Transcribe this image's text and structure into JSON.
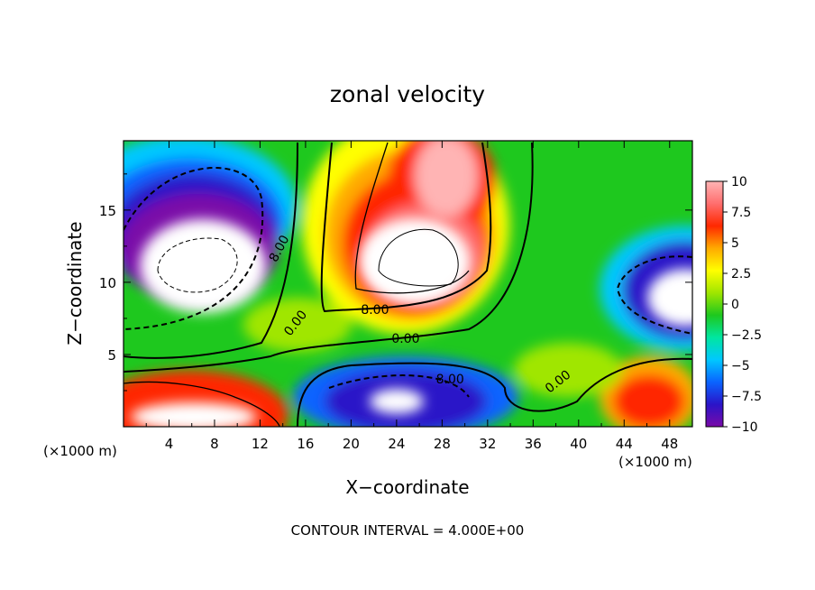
{
  "chart_data": {
    "type": "heatmap",
    "title": "zonal velocity",
    "xlabel": "X−coordinate",
    "ylabel": "Z−coordinate",
    "x_unit": "(×1000 m)",
    "y_unit": "(×1000 m)",
    "xlim": [
      0,
      50
    ],
    "ylim": [
      0,
      19.8
    ],
    "x_ticks": [
      4,
      8,
      12,
      16,
      20,
      24,
      28,
      32,
      36,
      40,
      44,
      48
    ],
    "y_ticks": [
      5,
      10,
      15
    ],
    "x_tick_labels": [
      "4",
      "8",
      "12",
      "16",
      "20",
      "24",
      "28",
      "32",
      "36",
      "40",
      "44",
      "48"
    ],
    "y_tick_labels": [
      "5",
      "10",
      "15"
    ],
    "colorbar": {
      "min": -10,
      "max": 10,
      "ticks": [
        10,
        7.5,
        5,
        2.5,
        0,
        -2.5,
        -5,
        -7.5,
        -10
      ],
      "tick_labels": [
        "10",
        "7.5",
        "5",
        "2.5",
        "0",
        "−2.5",
        "−5",
        "−7.5",
        "−10"
      ],
      "stops": [
        "#7a0aa8",
        "#2a14c8",
        "#0a64ff",
        "#00c8ff",
        "#00e6a0",
        "#1ec81e",
        "#a0e600",
        "#ffff00",
        "#ffaa00",
        "#ff2800",
        "#ff6e6e",
        "#ffb4b4"
      ],
      "out_of_range_color": "#ffffff"
    },
    "contour_labels": [
      {
        "text": "8.00",
        "x": 14.0,
        "y": 12.2,
        "rotate": -62
      },
      {
        "text": "0.00",
        "x": 15.4,
        "y": 7.0,
        "rotate": -52
      },
      {
        "text": "8.00",
        "x": 22.1,
        "y": 7.8,
        "rotate": 0
      },
      {
        "text": "0.00",
        "x": 24.8,
        "y": 5.8,
        "rotate": 0
      },
      {
        "text": "8.00",
        "x": 28.7,
        "y": 3.0,
        "rotate": 0
      },
      {
        "text": "0.00",
        "x": 38.4,
        "y": 2.9,
        "rotate": -38
      }
    ],
    "footnote": "CONTOUR INTERVAL = 4.000E+00",
    "grid": false,
    "legend": "colorbar-right"
  }
}
